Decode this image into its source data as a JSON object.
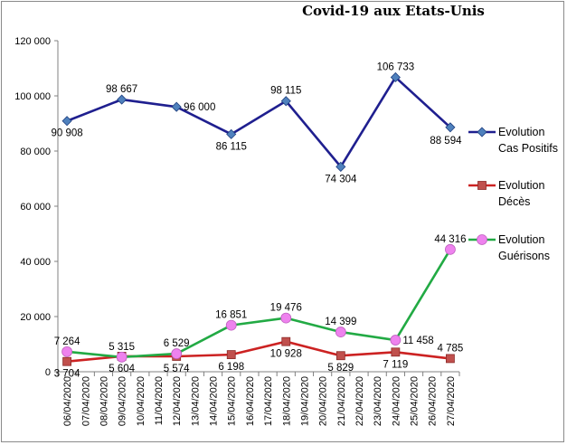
{
  "chart_data": {
    "type": "line",
    "title": "Covid-19 aux Etats-Unis",
    "categories": [
      "06/04/2020",
      "07/04/2020",
      "08/04/2020",
      "09/04/2020",
      "10/04/2020",
      "11/04/2020",
      "12/04/2020",
      "13/04/2020",
      "14/04/2020",
      "15/04/2020",
      "16/04/2020",
      "17/04/2020",
      "18/04/2020",
      "19/04/2020",
      "20/04/2020",
      "21/04/2020",
      "22/04/2020",
      "23/04/2020",
      "24/04/2020",
      "25/04/2020",
      "26/04/2020",
      "27/04/2020"
    ],
    "ylim": [
      0,
      120000
    ],
    "yticks": [
      0,
      20000,
      40000,
      60000,
      80000,
      100000,
      120000
    ],
    "ytick_labels": [
      "0",
      "20 000",
      "40 000",
      "60 000",
      "80 000",
      "100 000",
      "120 000"
    ],
    "grid": false,
    "legend_position": "right",
    "series": [
      {
        "name": "Evolution\nCas Positifs",
        "color": "#1f1f8f",
        "marker": "diamond",
        "marker_color": "#4f81bd",
        "points": [
          {
            "x": "06/04/2020",
            "y": 90908,
            "label": "90 908",
            "pos": "below"
          },
          {
            "x": "09/04/2020",
            "y": 98667,
            "label": "98 667",
            "pos": "above"
          },
          {
            "x": "12/04/2020",
            "y": 96000,
            "label": "96 000",
            "pos": "right"
          },
          {
            "x": "15/04/2020",
            "y": 86115,
            "label": "86 115",
            "pos": "below"
          },
          {
            "x": "18/04/2020",
            "y": 98115,
            "label": "98 115",
            "pos": "above"
          },
          {
            "x": "21/04/2020",
            "y": 74304,
            "label": "74 304",
            "pos": "below"
          },
          {
            "x": "24/04/2020",
            "y": 106733,
            "label": "106 733",
            "pos": "above"
          },
          {
            "x": "27/04/2020",
            "y": 88594,
            "label": "88 594",
            "pos": "below-left"
          }
        ]
      },
      {
        "name": "Evolution\nDécès",
        "color": "#cc2222",
        "marker": "square",
        "marker_color": "#c0504d",
        "points": [
          {
            "x": "06/04/2020",
            "y": 3704,
            "label": "3 704",
            "pos": "below"
          },
          {
            "x": "09/04/2020",
            "y": 5604,
            "label": "5 604",
            "pos": "below"
          },
          {
            "x": "12/04/2020",
            "y": 5574,
            "label": "5 574",
            "pos": "below"
          },
          {
            "x": "15/04/2020",
            "y": 6198,
            "label": "6 198",
            "pos": "below"
          },
          {
            "x": "18/04/2020",
            "y": 10928,
            "label": "10 928",
            "pos": "below"
          },
          {
            "x": "21/04/2020",
            "y": 5829,
            "label": "5 829",
            "pos": "below"
          },
          {
            "x": "24/04/2020",
            "y": 7119,
            "label": "7 119",
            "pos": "below"
          },
          {
            "x": "27/04/2020",
            "y": 4785,
            "label": "4 785",
            "pos": "above"
          }
        ]
      },
      {
        "name": "Evolution\nGuérisons",
        "color": "#22aa44",
        "marker": "circle",
        "marker_color": "#ee82ee",
        "points": [
          {
            "x": "06/04/2020",
            "y": 7264,
            "label": "7 264",
            "pos": "above"
          },
          {
            "x": "09/04/2020",
            "y": 5315,
            "label": "5 315",
            "pos": "above"
          },
          {
            "x": "12/04/2020",
            "y": 6529,
            "label": "6 529",
            "pos": "above"
          },
          {
            "x": "15/04/2020",
            "y": 16851,
            "label": "16 851",
            "pos": "above"
          },
          {
            "x": "18/04/2020",
            "y": 19476,
            "label": "19 476",
            "pos": "above"
          },
          {
            "x": "21/04/2020",
            "y": 14399,
            "label": "14 399",
            "pos": "above"
          },
          {
            "x": "24/04/2020",
            "y": 11458,
            "label": "11 458",
            "pos": "right"
          },
          {
            "x": "27/04/2020",
            "y": 44316,
            "label": "44 316",
            "pos": "above"
          }
        ]
      }
    ]
  }
}
